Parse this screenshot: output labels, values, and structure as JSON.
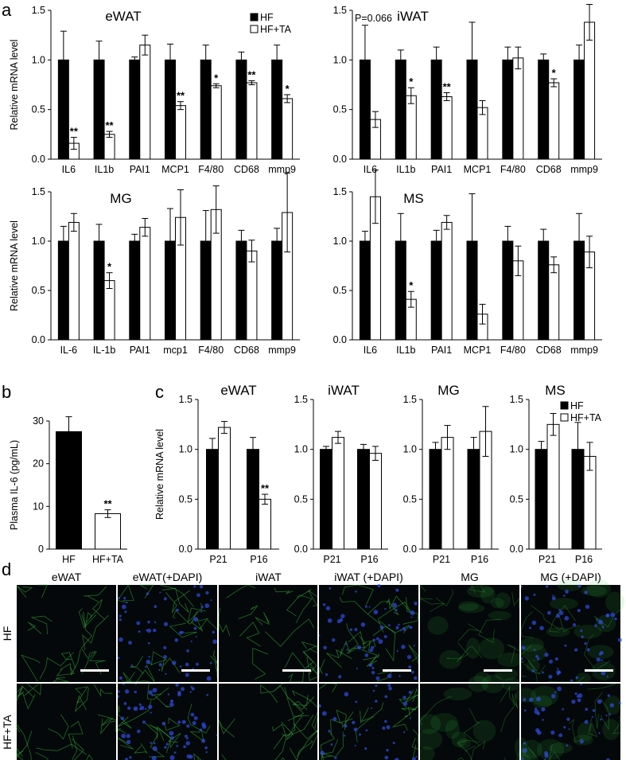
{
  "panel_letters": [
    "a",
    "b",
    "c",
    "d"
  ],
  "legend": {
    "hf": "HF",
    "hfta": "HF+TA"
  },
  "chart_data": [
    {
      "type": "bar",
      "panel": "a",
      "title": "eWAT",
      "ylabel": "Relative mRNA level",
      "categories": [
        "IL6",
        "IL1b",
        "PAI1",
        "MCP1",
        "F4/80",
        "CD68",
        "mmp9"
      ],
      "ylim": [
        0,
        1.5
      ],
      "yticks": [
        "0.0",
        "0.5",
        "1.0",
        "1.5"
      ],
      "series": [
        {
          "name": "HF",
          "values": [
            1,
            1,
            1,
            1,
            1,
            1,
            1
          ],
          "errors": [
            0.29,
            0.19,
            0.03,
            0.16,
            0.15,
            0.08,
            0.15
          ]
        },
        {
          "name": "HF+TA",
          "values": [
            0.16,
            0.25,
            1.15,
            0.54,
            0.74,
            0.77,
            0.61
          ],
          "errors": [
            0.06,
            0.03,
            0.1,
            0.04,
            0.02,
            0.02,
            0.04
          ]
        }
      ],
      "significance": [
        "**",
        "**",
        "",
        "**",
        "*",
        "**",
        "*"
      ],
      "legend_shown": true,
      "legend_position": "top-right"
    },
    {
      "type": "bar",
      "panel": "a",
      "title": "iWAT",
      "ylabel": "",
      "categories": [
        "IL6",
        "IL1b",
        "PAI1",
        "MCP1",
        "F4/80",
        "CD68",
        "mmp9"
      ],
      "ylim": [
        0,
        1.5
      ],
      "yticks": [
        "0.0",
        "0.5",
        "1.0",
        "1.5"
      ],
      "series": [
        {
          "name": "HF",
          "values": [
            1,
            1,
            1,
            1,
            1,
            1,
            1
          ],
          "errors": [
            0.35,
            0.1,
            0.13,
            0.38,
            0.13,
            0.06,
            0.15
          ]
        },
        {
          "name": "HF+TA",
          "values": [
            0.4,
            0.64,
            0.63,
            0.52,
            1.02,
            0.77,
            1.38
          ],
          "errors": [
            0.08,
            0.08,
            0.04,
            0.07,
            0.11,
            0.04,
            0.18
          ]
        }
      ],
      "significance": [
        "",
        "*",
        "**",
        "",
        "",
        "*",
        ""
      ],
      "annotation": "P=0.066"
    },
    {
      "type": "bar",
      "panel": "a",
      "title": "MG",
      "ylabel": "Relative mRNA level",
      "categories": [
        "IL-6",
        "IL-1b",
        "PAI1",
        "mcp1",
        "F4/80",
        "CD68",
        "mmp9"
      ],
      "ylim": [
        0,
        1.5
      ],
      "yticks": [
        "0.0",
        "0.5",
        "1.0",
        "1.5"
      ],
      "series": [
        {
          "name": "HF",
          "values": [
            1,
            1,
            1,
            1,
            1,
            1,
            1
          ],
          "errors": [
            0.15,
            0.17,
            0.07,
            0.33,
            0.31,
            0.11,
            0.13
          ]
        },
        {
          "name": "HF+TA",
          "values": [
            1.19,
            0.6,
            1.14,
            1.24,
            1.32,
            0.9,
            1.29
          ],
          "errors": [
            0.09,
            0.08,
            0.09,
            0.28,
            0.24,
            0.11,
            0.4
          ]
        }
      ],
      "significance": [
        "",
        "*",
        "",
        "",
        "",
        "",
        ""
      ]
    },
    {
      "type": "bar",
      "panel": "a",
      "title": "MS",
      "ylabel": "",
      "categories": [
        "IL6",
        "IL1b",
        "PAI1",
        "MCP1",
        "F4/80",
        "CD68",
        "mmp9"
      ],
      "ylim": [
        0,
        1.5
      ],
      "yticks": [
        "0.0",
        "0.5",
        "1.0",
        "1.5"
      ],
      "series": [
        {
          "name": "HF",
          "values": [
            1,
            1,
            1,
            1,
            1,
            1,
            1
          ],
          "errors": [
            0.1,
            0.28,
            0.11,
            0.48,
            0.15,
            0.12,
            0.28
          ]
        },
        {
          "name": "HF+TA",
          "values": [
            1.45,
            0.41,
            1.19,
            0.26,
            0.8,
            0.76,
            0.89
          ],
          "errors": [
            0.27,
            0.08,
            0.07,
            0.1,
            0.15,
            0.08,
            0.16
          ]
        }
      ],
      "significance": [
        "",
        "*",
        "",
        "",
        "",
        "",
        ""
      ]
    },
    {
      "type": "bar",
      "panel": "b",
      "title": "",
      "ylabel": "Plasma IL-6 (pg/mL)",
      "categories": [
        "HF",
        "HF+TA"
      ],
      "ylim": [
        0,
        30
      ],
      "yticks": [
        "0",
        "10",
        "20",
        "30"
      ],
      "series": [
        {
          "name": "",
          "values": [
            27.5,
            8.3
          ],
          "errors": [
            3.5,
            0.9
          ]
        }
      ],
      "significance": [
        "",
        "**"
      ]
    },
    {
      "type": "bar",
      "panel": "c",
      "title": "eWAT",
      "ylabel": "Relative mRNA level",
      "categories": [
        "P21",
        "P16"
      ],
      "ylim": [
        0,
        1.5
      ],
      "yticks": [
        "0.0",
        "0.5",
        "1.0",
        "1.5"
      ],
      "series": [
        {
          "name": "HF",
          "values": [
            1,
            1
          ],
          "errors": [
            0.11,
            0.12
          ]
        },
        {
          "name": "HF+TA",
          "values": [
            1.22,
            0.5
          ],
          "errors": [
            0.06,
            0.05
          ]
        }
      ],
      "significance": [
        "",
        "**"
      ]
    },
    {
      "type": "bar",
      "panel": "c",
      "title": "iWAT",
      "ylabel": "",
      "categories": [
        "P21",
        "P16"
      ],
      "ylim": [
        0,
        1.5
      ],
      "yticks": [
        "0.0",
        "0.5",
        "1.0",
        "1.5"
      ],
      "series": [
        {
          "name": "HF",
          "values": [
            1,
            1
          ],
          "errors": [
            0.03,
            0.05
          ]
        },
        {
          "name": "HF+TA",
          "values": [
            1.12,
            0.96
          ],
          "errors": [
            0.06,
            0.07
          ]
        }
      ],
      "significance": [
        "",
        ""
      ]
    },
    {
      "type": "bar",
      "panel": "c",
      "title": "MG",
      "ylabel": "",
      "categories": [
        "P21",
        "P16"
      ],
      "ylim": [
        0,
        1.5
      ],
      "yticks": [
        "0.0",
        "0.5",
        "1.0",
        "1.5"
      ],
      "series": [
        {
          "name": "HF",
          "values": [
            1,
            1
          ],
          "errors": [
            0.07,
            0.12
          ]
        },
        {
          "name": "HF+TA",
          "values": [
            1.12,
            1.18
          ],
          "errors": [
            0.12,
            0.25
          ]
        }
      ],
      "significance": [
        "",
        ""
      ]
    },
    {
      "type": "bar",
      "panel": "c",
      "title": "MS",
      "ylabel": "",
      "categories": [
        "P21",
        "P16"
      ],
      "ylim": [
        0,
        1.5
      ],
      "yticks": [
        "0.0",
        "0.5",
        "1.0",
        "1.5"
      ],
      "series": [
        {
          "name": "HF",
          "values": [
            1,
            1
          ],
          "errors": [
            0.08,
            0.27
          ]
        },
        {
          "name": "HF+TA",
          "values": [
            1.25,
            0.93
          ],
          "errors": [
            0.11,
            0.14
          ]
        }
      ],
      "significance": [
        "",
        ""
      ],
      "legend_shown": true,
      "legend_position": "top-right"
    }
  ],
  "micrographs": {
    "column_labels": [
      "eWAT",
      "eWAT(+DAPI)",
      "iWAT",
      "iWAT (+DAPI)",
      "MG",
      "MG (+DAPI)"
    ],
    "row_labels": [
      "HF",
      "HF+TA"
    ],
    "green_color": "#39c23f",
    "blue_color": "#2f4fe6",
    "background_color": "#04080a",
    "scale_bar_color": "#ffffff"
  }
}
